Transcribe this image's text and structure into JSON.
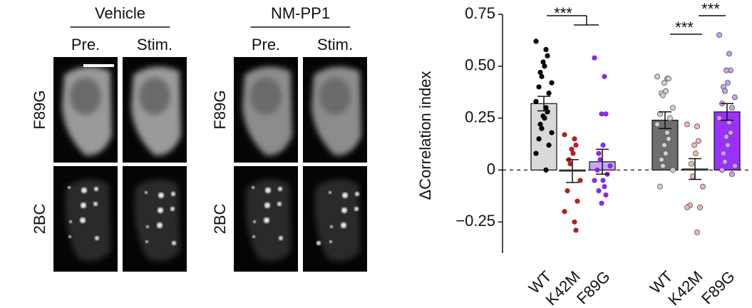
{
  "image_panel": {
    "groups": [
      {
        "title": "Vehicle",
        "columns": [
          "Pre.",
          "Stim."
        ]
      },
      {
        "title": "NM-PP1",
        "columns": [
          "Pre.",
          "Stim."
        ]
      }
    ],
    "rows": [
      "F89G",
      "2BC"
    ]
  },
  "chart_data": {
    "type": "bar",
    "y_label": "ΔCorrelation index",
    "categories": [
      "WT",
      "K42M",
      "F89G",
      "WT",
      "K42M",
      "F89G"
    ],
    "values": [
      0.32,
      -0.005,
      0.04,
      0.24,
      0.005,
      0.28
    ],
    "errors": [
      0.035,
      0.055,
      0.06,
      0.04,
      0.05,
      0.04
    ],
    "bar_colors": [
      "#d9d9d9",
      "#f6d6d6",
      "#c7a8f5",
      "#6e6e6e",
      "#f6d6d6",
      "#9b30ff"
    ],
    "point_colors": [
      "#000000",
      "#b22222",
      "#8a2be2",
      "#cfcfcf",
      "#f4b4b0",
      "#c9a0f0"
    ],
    "points": [
      [
        0.62,
        0.58,
        0.55,
        0.52,
        0.5,
        0.47,
        0.45,
        0.42,
        0.4,
        0.37,
        0.33,
        0.3,
        0.28,
        0.26,
        0.25,
        0.22,
        0.2,
        0.18,
        0.15,
        0.12,
        0.08,
        0.0
      ],
      [
        0.17,
        0.15,
        0.12,
        0.1,
        0.08,
        0.05,
        0.03,
        -0.05,
        -0.1,
        -0.15,
        -0.2,
        -0.25,
        -0.29
      ],
      [
        0.54,
        0.45,
        0.27,
        0.27,
        0.12,
        0.08,
        0.05,
        0.02,
        0.0,
        -0.02,
        -0.05,
        -0.08,
        -0.12,
        -0.16,
        -0.05,
        -0.1
      ],
      [
        0.45,
        0.44,
        0.44,
        0.42,
        0.38,
        0.37,
        0.36,
        0.3,
        0.27,
        0.25,
        0.22,
        0.18,
        0.15,
        0.12,
        0.08,
        0.05,
        0.02,
        0.0,
        -0.08
      ],
      [
        0.22,
        0.21,
        0.14,
        0.12,
        0.08,
        0.03,
        -0.03,
        -0.08,
        -0.17,
        -0.18,
        -0.18,
        -0.3
      ],
      [
        0.65,
        0.56,
        0.48,
        0.48,
        0.42,
        0.4,
        0.38,
        0.35,
        0.32,
        0.3,
        0.25,
        0.23,
        0.18,
        0.16,
        0.12,
        0.08,
        0.04,
        0.02,
        0.0,
        -0.02
      ]
    ],
    "significance": [
      "***",
      "***",
      "***"
    ],
    "ylim": [
      -0.4,
      0.75
    ],
    "yticks": [
      0.75,
      {
        "value": 0.5,
        "label": "0.50"
      },
      0.25,
      0,
      {
        "value": -0.25,
        "label": "−0.25"
      }
    ]
  }
}
